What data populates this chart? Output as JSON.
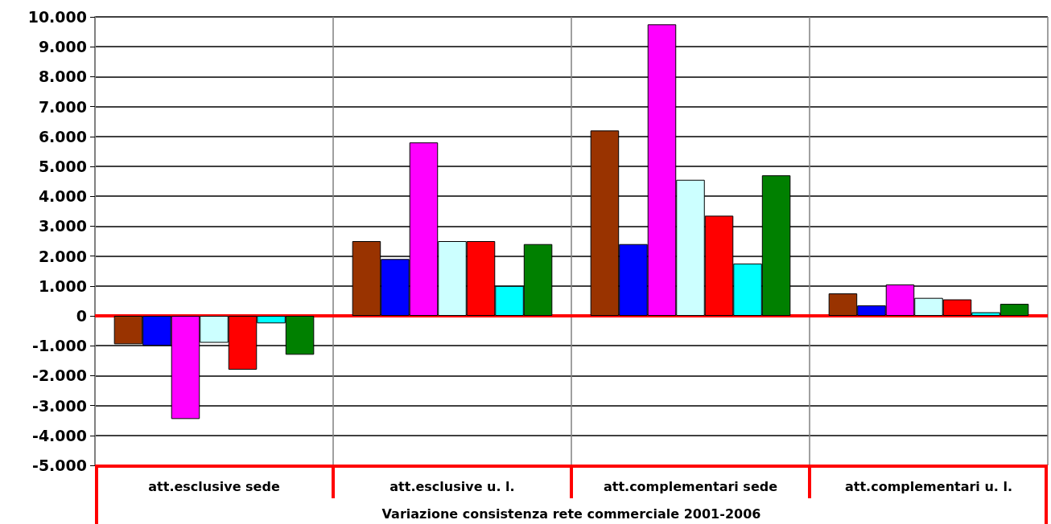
{
  "chart_data": {
    "type": "bar",
    "xlabel": "Variazione consistenza rete commerciale 2001-2006",
    "categories": [
      "att.esclusive sede",
      "att.esclusive u. l.",
      "att.complementari sede",
      "att.complementari u. l."
    ],
    "series": [
      {
        "color": "#993300",
        "values": [
          -950,
          2500,
          6200,
          750
        ]
      },
      {
        "color": "#0000ff",
        "values": [
          -1000,
          1900,
          2400,
          350
        ]
      },
      {
        "color": "#ff00ff",
        "values": [
          -3450,
          5800,
          9750,
          1050
        ]
      },
      {
        "color": "#ccffff",
        "values": [
          -900,
          2500,
          4550,
          600
        ]
      },
      {
        "color": "#ff0000",
        "values": [
          -1800,
          2500,
          3350,
          550
        ]
      },
      {
        "color": "#00ffff",
        "values": [
          -250,
          1000,
          1750,
          120
        ]
      },
      {
        "color": "#008000",
        "values": [
          -1300,
          2400,
          4700,
          400
        ]
      }
    ],
    "ylim": [
      -5000,
      10000
    ],
    "yticks": [
      {
        "value": -5000,
        "label": "-5.000"
      },
      {
        "value": -4000,
        "label": "-4.000"
      },
      {
        "value": -3000,
        "label": "-3.000"
      },
      {
        "value": -2000,
        "label": "-2.000"
      },
      {
        "value": -1000,
        "label": "-1.000"
      },
      0,
      {
        "value": 1000,
        "label": "1.000"
      },
      {
        "value": 2000,
        "label": "2.000"
      },
      {
        "value": 3000,
        "label": "3.000"
      },
      {
        "value": 4000,
        "label": "4.000"
      },
      {
        "value": 5000,
        "label": "5.000"
      },
      {
        "value": 6000,
        "label": "6.000"
      },
      {
        "value": 7000,
        "label": "7.000"
      },
      {
        "value": 8000,
        "label": "8.000"
      },
      {
        "value": 9000,
        "label": "9.000"
      },
      {
        "value": 10000,
        "label": "10.000"
      }
    ],
    "grid": true,
    "ref_lines": [
      {
        "axis": "y",
        "value": 0,
        "color": "#ff0000"
      }
    ]
  }
}
